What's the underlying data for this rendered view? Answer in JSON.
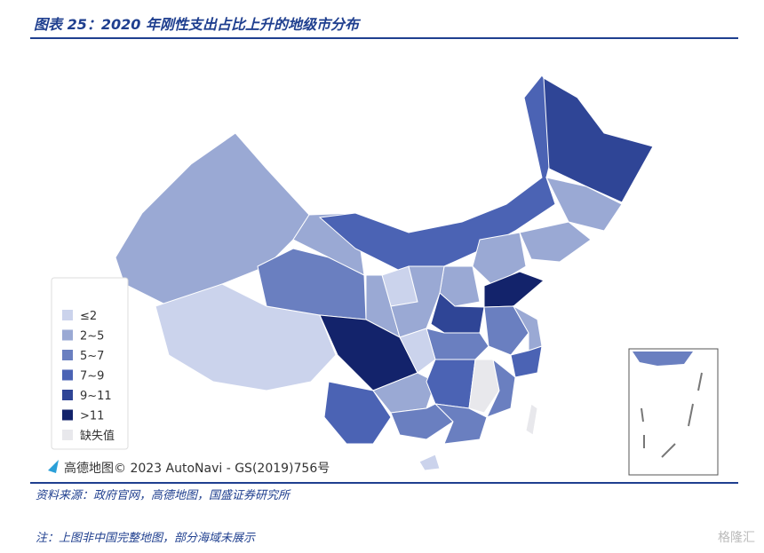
{
  "header": {
    "title": "图表 25：2020 年刚性支出占比上升的地级市分布"
  },
  "legend": [
    {
      "label": "≤2",
      "color": "#cbd3ec"
    },
    {
      "label": "2~5",
      "color": "#9aa9d4"
    },
    {
      "label": "5~7",
      "color": "#6a7fc0"
    },
    {
      "label": "7~9",
      "color": "#4b63b4"
    },
    {
      "label": "9~11",
      "color": "#2f4596"
    },
    {
      "label": ">11",
      "color": "#13236b"
    },
    {
      "label": "缺失值",
      "color": "#e8e8ec"
    }
  ],
  "attribution": "高德地图© 2023 AutoNavi - GS(2019)756号",
  "footer": {
    "source": "资料来源：政府官网，高德地图，国盛证券研究所",
    "note": "注：上图非中国完整地图，部分海域未展示"
  },
  "watermark": "格隆汇"
}
